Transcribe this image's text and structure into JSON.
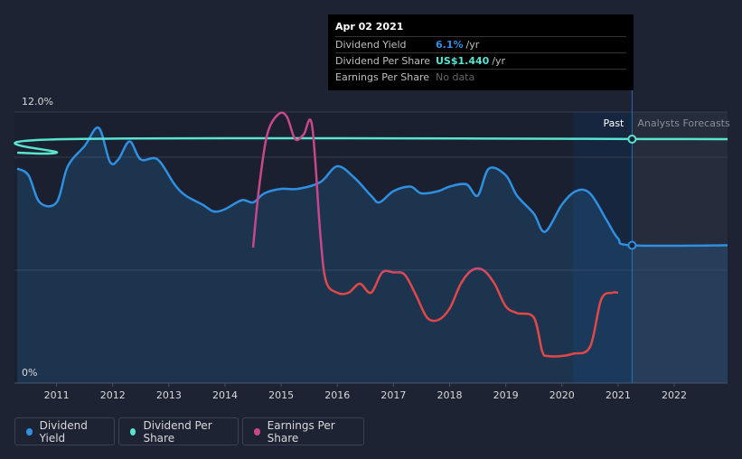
{
  "chart_data": {
    "type": "line",
    "y_axis": {
      "top_label": "12.0%",
      "bottom_label": "0%",
      "min": 0,
      "max": 12
    },
    "x_ticks": [
      "2011",
      "2012",
      "2013",
      "2014",
      "2015",
      "2016",
      "2017",
      "2018",
      "2019",
      "2020",
      "2021",
      "2022"
    ],
    "x_range": [
      2010.25,
      2022.95
    ],
    "region_labels": {
      "past": "Past",
      "forecast": "Analysts Forecasts"
    },
    "divider_x": 2021.25,
    "series": [
      {
        "name": "Dividend Yield",
        "color": "#2f8fe0",
        "values": [
          [
            2010.3,
            9.5
          ],
          [
            2010.5,
            9.2
          ],
          [
            2010.7,
            8.0
          ],
          [
            2011.0,
            8.0
          ],
          [
            2011.2,
            9.6
          ],
          [
            2011.5,
            10.5
          ],
          [
            2011.75,
            11.3
          ],
          [
            2011.95,
            9.8
          ],
          [
            2012.1,
            9.9
          ],
          [
            2012.3,
            10.7
          ],
          [
            2012.5,
            9.9
          ],
          [
            2012.8,
            9.9
          ],
          [
            2013.1,
            8.8
          ],
          [
            2013.3,
            8.3
          ],
          [
            2013.6,
            7.9
          ],
          [
            2013.8,
            7.6
          ],
          [
            2014.0,
            7.7
          ],
          [
            2014.3,
            8.1
          ],
          [
            2014.5,
            8.0
          ],
          [
            2014.7,
            8.4
          ],
          [
            2015.0,
            8.6
          ],
          [
            2015.3,
            8.6
          ],
          [
            2015.7,
            8.9
          ],
          [
            2016.0,
            9.6
          ],
          [
            2016.3,
            9.1
          ],
          [
            2016.6,
            8.3
          ],
          [
            2016.75,
            8.0
          ],
          [
            2017.0,
            8.5
          ],
          [
            2017.3,
            8.7
          ],
          [
            2017.5,
            8.4
          ],
          [
            2017.8,
            8.5
          ],
          [
            2018.0,
            8.7
          ],
          [
            2018.3,
            8.8
          ],
          [
            2018.5,
            8.3
          ],
          [
            2018.7,
            9.5
          ],
          [
            2019.0,
            9.2
          ],
          [
            2019.2,
            8.3
          ],
          [
            2019.5,
            7.5
          ],
          [
            2019.7,
            6.7
          ],
          [
            2020.0,
            7.9
          ],
          [
            2020.25,
            8.5
          ],
          [
            2020.5,
            8.4
          ],
          [
            2020.8,
            7.2
          ],
          [
            2021.0,
            6.4
          ],
          [
            2021.25,
            6.1
          ],
          [
            2022.95,
            6.1
          ]
        ]
      },
      {
        "name": "Dividend Per Share",
        "color": "#5ae3d0",
        "values": [
          [
            2010.3,
            10.2
          ],
          [
            2011.0,
            10.2
          ],
          [
            2011.15,
            10.8
          ],
          [
            2022.95,
            10.8
          ]
        ]
      },
      {
        "name": "Earnings Per Share",
        "color": "#c8468a",
        "color_low": "#e04848",
        "values": [
          [
            2014.5,
            6.0
          ],
          [
            2014.6,
            8.5
          ],
          [
            2014.75,
            11.0
          ],
          [
            2014.95,
            11.9
          ],
          [
            2015.1,
            11.8
          ],
          [
            2015.25,
            10.8
          ],
          [
            2015.4,
            11.0
          ],
          [
            2015.55,
            11.4
          ],
          [
            2015.7,
            6.5
          ],
          [
            2015.8,
            4.5
          ],
          [
            2016.0,
            4.0
          ],
          [
            2016.2,
            4.0
          ],
          [
            2016.4,
            4.4
          ],
          [
            2016.6,
            4.0
          ],
          [
            2016.8,
            4.9
          ],
          [
            2017.0,
            4.9
          ],
          [
            2017.2,
            4.8
          ],
          [
            2017.4,
            3.9
          ],
          [
            2017.6,
            2.9
          ],
          [
            2017.8,
            2.8
          ],
          [
            2018.0,
            3.3
          ],
          [
            2018.2,
            4.4
          ],
          [
            2018.4,
            5.0
          ],
          [
            2018.6,
            5.0
          ],
          [
            2018.8,
            4.4
          ],
          [
            2019.0,
            3.4
          ],
          [
            2019.2,
            3.1
          ],
          [
            2019.5,
            2.9
          ],
          [
            2019.65,
            1.4
          ],
          [
            2019.75,
            1.2
          ],
          [
            2020.0,
            1.2
          ],
          [
            2020.2,
            1.3
          ],
          [
            2020.5,
            1.6
          ],
          [
            2020.7,
            3.7
          ],
          [
            2020.9,
            4.0
          ],
          [
            2021.0,
            4.0
          ]
        ]
      }
    ]
  },
  "tooltip": {
    "date": "Apr 02 2021",
    "rows": [
      {
        "label": "Dividend Yield",
        "value": "6.1%",
        "unit": "/yr",
        "color": "#2f8fe0"
      },
      {
        "label": "Dividend Per Share",
        "value": "US$1.440",
        "unit": "/yr",
        "color": "#5ae3d0"
      },
      {
        "label": "Earnings Per Share",
        "value": "No data",
        "unit": "",
        "color": "#666666"
      }
    ]
  },
  "legend": [
    {
      "label": "Dividend Yield",
      "color": "#2f8fe0"
    },
    {
      "label": "Dividend Per Share",
      "color": "#5ae3d0"
    },
    {
      "label": "Earnings Per Share",
      "color": "#c8468a"
    }
  ]
}
